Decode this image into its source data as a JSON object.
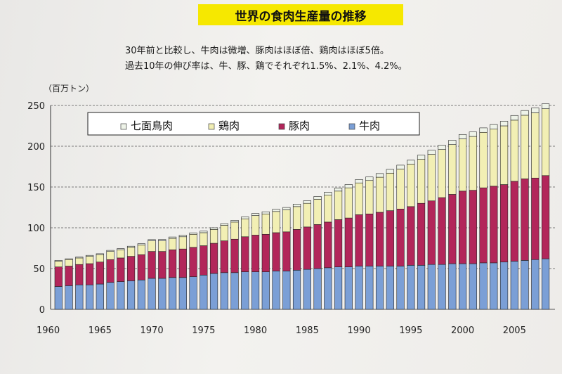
{
  "title": "世界の食肉生産量の推移",
  "subtitle_lines": [
    "30年前と比較し、牛肉は微増、豚肉はほぼ倍、鶏肉はほぼ5倍。",
    "過去10年の伸び率は、牛、豚、鶏でそれぞれ1.5%、2.1%、4.2%。"
  ],
  "colors": {
    "beef": "#7b9fd6",
    "pork": "#b2265a",
    "chicken": "#f2efb4",
    "turkey": "#eef3e8"
  },
  "chart_data": {
    "type": "bar",
    "stacked": true,
    "unit_label": "（百万トン）",
    "ylim": [
      0,
      250
    ],
    "y_ticks": [
      "0",
      "50",
      "100",
      "150",
      "200",
      "250"
    ],
    "x_tick_labels": [
      "1960",
      "1965",
      "1970",
      "1975",
      "1980",
      "1985",
      "1990",
      "1995",
      "2000",
      "2005"
    ],
    "grid": true,
    "legend_position": "top",
    "legend": [
      "七面鳥肉",
      "鶏肉",
      "豚肉",
      "牛肉"
    ],
    "categories": [
      1961,
      1962,
      1963,
      1964,
      1965,
      1966,
      1967,
      1968,
      1969,
      1970,
      1971,
      1972,
      1973,
      1974,
      1975,
      1976,
      1977,
      1978,
      1979,
      1980,
      1981,
      1982,
      1983,
      1984,
      1985,
      1986,
      1987,
      1988,
      1989,
      1990,
      1991,
      1992,
      1993,
      1994,
      1995,
      1996,
      1997,
      1998,
      1999,
      2000,
      2001,
      2002,
      2003,
      2004,
      2005,
      2006,
      2007,
      2008
    ],
    "series": [
      {
        "name": "牛肉",
        "key": "beef",
        "values": [
          28,
          29,
          30,
          30,
          31,
          33,
          34,
          35,
          36,
          38,
          38,
          39,
          39,
          40,
          42,
          44,
          45,
          45,
          46,
          46,
          46,
          47,
          47,
          48,
          49,
          50,
          51,
          52,
          52,
          53,
          53,
          53,
          53,
          53,
          54,
          54,
          55,
          55,
          56,
          56,
          56,
          57,
          57,
          58,
          59,
          60,
          61,
          62
        ]
      },
      {
        "name": "豚肉",
        "key": "pork",
        "values": [
          24,
          24,
          25,
          26,
          27,
          28,
          29,
          30,
          31,
          33,
          33,
          34,
          35,
          36,
          36,
          37,
          39,
          41,
          43,
          45,
          46,
          47,
          48,
          50,
          52,
          54,
          56,
          58,
          60,
          63,
          64,
          66,
          68,
          70,
          72,
          76,
          78,
          82,
          85,
          89,
          90,
          92,
          94,
          95,
          98,
          100,
          100,
          102
        ]
      },
      {
        "name": "鶏肉",
        "key": "chicken",
        "values": [
          7,
          8,
          8,
          9,
          9,
          10,
          10,
          11,
          12,
          13,
          13,
          14,
          15,
          16,
          16,
          17,
          19,
          21,
          22,
          24,
          25,
          26,
          27,
          28,
          29,
          31,
          33,
          35,
          37,
          39,
          41,
          43,
          46,
          49,
          52,
          54,
          57,
          59,
          61,
          64,
          66,
          68,
          70,
          72,
          75,
          78,
          80,
          82
        ]
      },
      {
        "name": "七面鳥肉",
        "key": "turkey",
        "values": [
          1.0,
          1.0,
          1.1,
          1.2,
          1.2,
          1.3,
          1.4,
          1.4,
          1.5,
          1.5,
          1.6,
          1.7,
          1.8,
          1.8,
          1.9,
          2.0,
          2.1,
          2.2,
          2.4,
          2.5,
          2.6,
          2.7,
          2.9,
          3.0,
          3.2,
          3.4,
          3.6,
          3.8,
          4.0,
          4.2,
          4.3,
          4.5,
          4.6,
          4.8,
          4.9,
          5.0,
          5.1,
          5.2,
          5.3,
          5.4,
          5.5,
          5.5,
          5.6,
          5.6,
          5.7,
          5.8,
          5.9,
          6.0
        ]
      }
    ]
  }
}
